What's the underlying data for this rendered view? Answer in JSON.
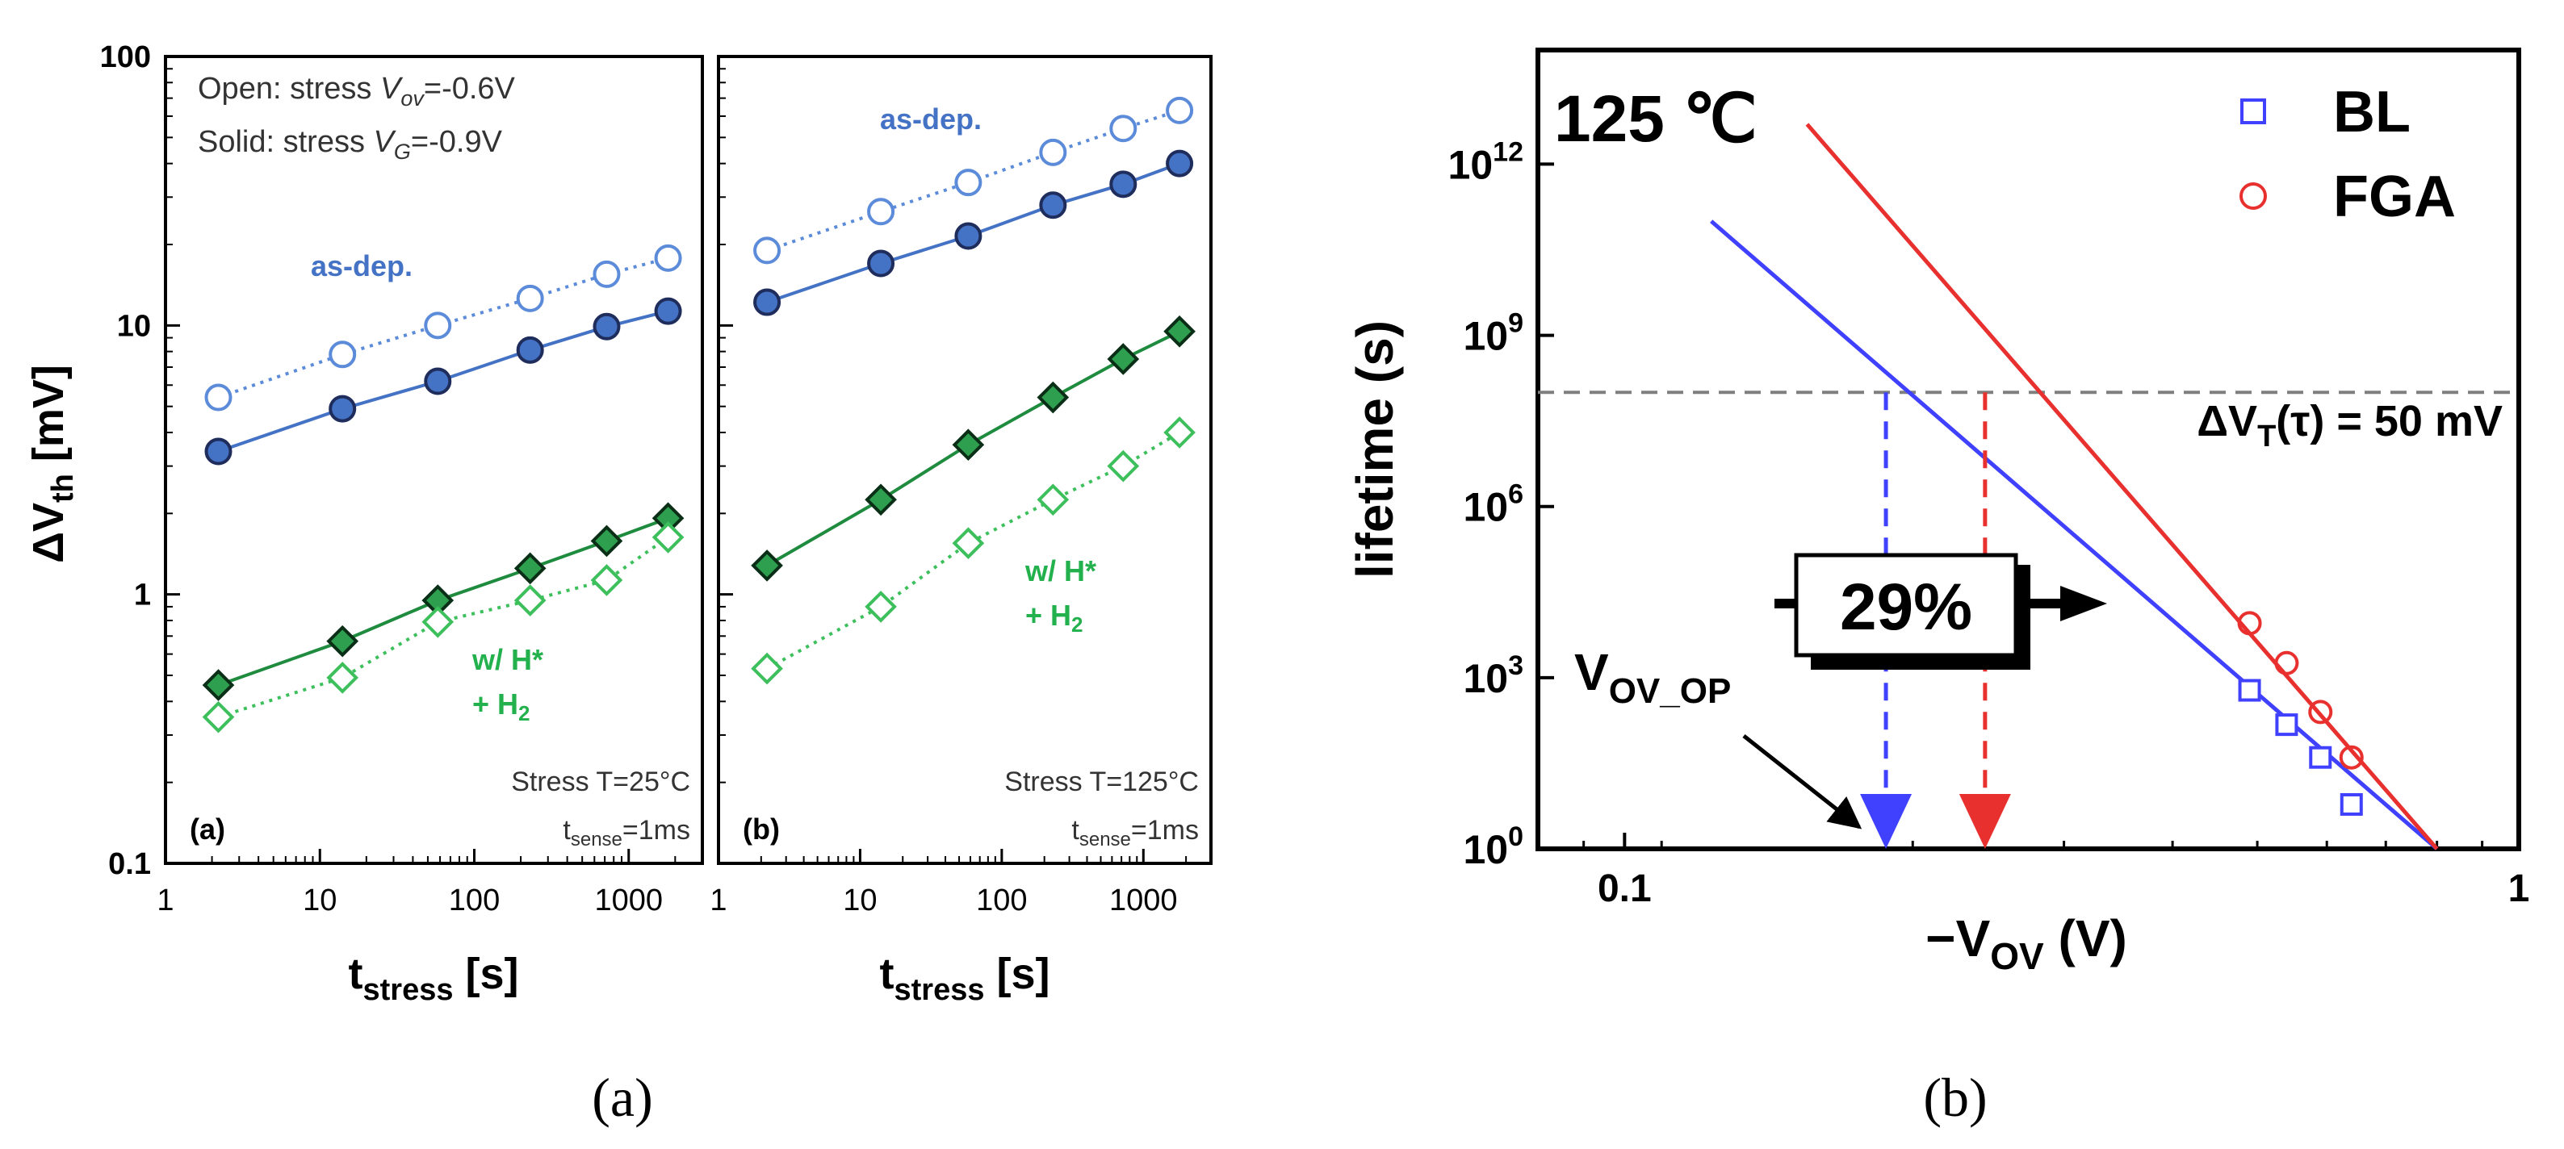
{
  "figure": {
    "caption_a": "(a)",
    "caption_b": "(b)"
  },
  "colors": {
    "blue": "#4472C4",
    "blue_light": "#5B8BD9",
    "green_dark": "#1E8B3E",
    "green_fill": "#2E9E4F",
    "green_light": "#3DBF5C",
    "line_blue": "#4040FF",
    "line_red": "#E8312F",
    "gray_dash": "#7F7F7F"
  },
  "chart_data": [
    {
      "id": "panel-a",
      "type": "scatter",
      "xscale": "log",
      "yscale": "log",
      "xlim": [
        1,
        3000
      ],
      "ylim": [
        0.1,
        100
      ],
      "ylabel_main": "ΔV",
      "ylabel_sub": "th",
      "ylabel_unit": " [mV]",
      "xlabel_main": "t",
      "xlabel_sub": "stress",
      "xlabel_unit": " [s]",
      "xticks": [
        "1",
        "10",
        "100",
        "1000"
      ],
      "yticks": [
        "0.1",
        "1",
        "10",
        "100"
      ],
      "legend_open_prefix": "Open: stress ",
      "legend_open_var": "V",
      "legend_open_sub": "ov",
      "legend_open_val": "=-0.6V",
      "legend_solid_prefix": "Solid: stress ",
      "legend_solid_var": "V",
      "legend_solid_sub": "G",
      "legend_solid_val": "=-0.9V",
      "label_asdep": "as-dep.",
      "label_h1": "w/ H*",
      "label_h2": "+ H",
      "label_h2_sub": "2",
      "cond_temp": "Stress T=25°C",
      "cond_sense_a": "t",
      "cond_sense_sub": "sense",
      "cond_sense_b": "=1ms",
      "panel_tag": "(a)",
      "x": [
        2.2,
        14,
        58,
        230,
        720,
        1800
      ],
      "series": [
        {
          "name": "as-dep. open",
          "marker": "circle-open",
          "line": "dotted",
          "values": [
            5.4,
            7.8,
            10.0,
            12.6,
            15.5,
            17.8
          ]
        },
        {
          "name": "as-dep. solid",
          "marker": "circle-filled",
          "line": "solid",
          "values": [
            3.4,
            4.9,
            6.2,
            8.1,
            9.9,
            11.3
          ]
        },
        {
          "name": "H2 solid",
          "marker": "diamond-filled",
          "line": "solid",
          "values": [
            0.46,
            0.67,
            0.95,
            1.25,
            1.58,
            1.92
          ]
        },
        {
          "name": "H2 open",
          "marker": "diamond-open",
          "line": "dotted",
          "values": [
            0.35,
            0.49,
            0.79,
            0.95,
            1.13,
            1.63
          ]
        }
      ]
    },
    {
      "id": "panel-b",
      "type": "scatter",
      "xscale": "log",
      "yscale": "log",
      "xlim": [
        1,
        3000
      ],
      "ylim": [
        0.1,
        100
      ],
      "xlabel_main": "t",
      "xlabel_sub": "stress",
      "xlabel_unit": " [s]",
      "xticks": [
        "1",
        "10",
        "100",
        "1000"
      ],
      "label_asdep": "as-dep.",
      "label_h1": "w/ H*",
      "label_h2": "+ H",
      "label_h2_sub": "2",
      "cond_temp": "Stress T=125°C",
      "cond_sense_a": "t",
      "cond_sense_sub": "sense",
      "cond_sense_b": "=1ms",
      "panel_tag": "(b)",
      "x": [
        2.2,
        14,
        58,
        230,
        720,
        1800
      ],
      "series": [
        {
          "name": "as-dep. open",
          "marker": "circle-open",
          "line": "dotted",
          "values": [
            19,
            26.5,
            34,
            44,
            54,
            63
          ]
        },
        {
          "name": "as-dep. solid",
          "marker": "circle-filled",
          "line": "solid",
          "values": [
            12.2,
            17,
            21.5,
            28,
            33.5,
            40
          ]
        },
        {
          "name": "H2 solid",
          "marker": "diamond-filled",
          "line": "solid",
          "values": [
            1.28,
            2.25,
            3.6,
            5.4,
            7.5,
            9.5
          ]
        },
        {
          "name": "H2 open",
          "marker": "diamond-open",
          "line": "dotted",
          "values": [
            0.53,
            0.9,
            1.55,
            2.25,
            3.0,
            4.0
          ]
        }
      ]
    },
    {
      "id": "panel-c",
      "type": "line",
      "xscale": "log",
      "yscale": "log",
      "xlim": [
        0.08,
        1.0
      ],
      "ylim": [
        1,
        100000000000000.0
      ],
      "ylabel": "lifetime (s)",
      "xlabel_main": "−V",
      "xlabel_sub": "OV",
      "xlabel_unit": " (V)",
      "xticks": [
        "0.1",
        "1"
      ],
      "ytick_base": "10",
      "ytick_exps": [
        "0",
        "3",
        "6",
        "9",
        "12"
      ],
      "temperature": "125 ℃",
      "legend": [
        {
          "name": "BL",
          "marker": "square-open",
          "color": "blue"
        },
        {
          "name": "FGA",
          "marker": "circle-open",
          "color": "red"
        }
      ],
      "threshold_lifetime": 100000000.0,
      "threshold_label_main": "ΔV",
      "threshold_label_sub": "T",
      "threshold_label_rest": "(τ) = 50 mV",
      "improvement_label": "29%",
      "vop_main": "V",
      "vop_sub": "OV_OP",
      "intercept_bl": 0.196,
      "intercept_fga": 0.253,
      "lines": [
        {
          "name": "BL fit",
          "color": "blue",
          "x": [
            0.125,
            0.81
          ],
          "y": [
            100000000000.0,
            1
          ]
        },
        {
          "name": "FGA fit",
          "color": "red",
          "x": [
            0.16,
            0.81
          ],
          "y": [
            5000000000000.0,
            1
          ]
        }
      ],
      "series": [
        {
          "name": "BL",
          "marker": "square-open",
          "color": "blue",
          "x": [
            0.5,
            0.55,
            0.6,
            0.65
          ],
          "y": [
            600,
            150,
            40,
            6
          ]
        },
        {
          "name": "FGA",
          "marker": "circle-open",
          "color": "red",
          "x": [
            0.5,
            0.55,
            0.6,
            0.65
          ],
          "y": [
            9000,
            1800,
            250,
            40
          ]
        }
      ]
    }
  ]
}
